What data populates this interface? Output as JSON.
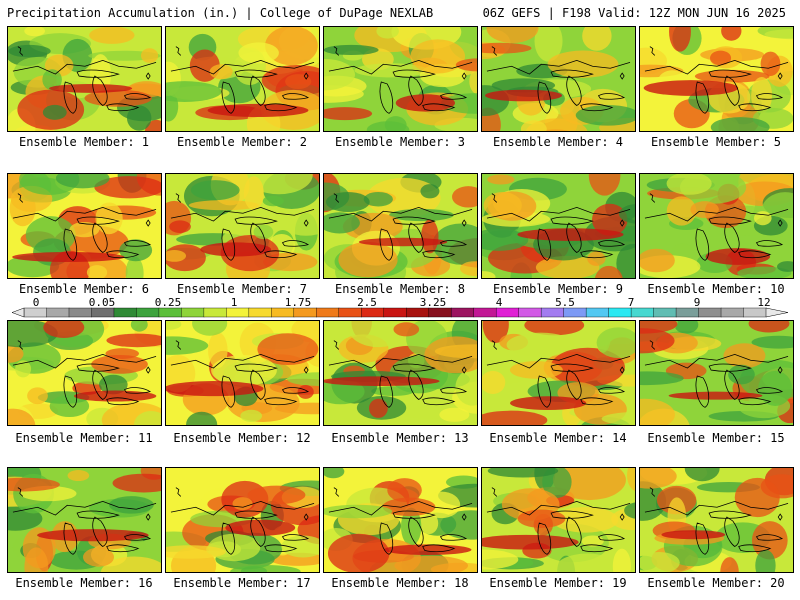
{
  "header": {
    "title_left": "Precipitation Accumulation (in.) | College of DuPage NEXLAB",
    "title_right": "06Z GEFS | F198 Valid: 12Z MON JUN 16 2025"
  },
  "colorbar": {
    "labels": [
      "0",
      "0.05",
      "0.25",
      "1",
      "1.75",
      "2.5",
      "3.25",
      "4",
      "5.5",
      "7",
      "9",
      "12"
    ],
    "colors": [
      "#cfcfcf",
      "#a8a8a8",
      "#8a8a8a",
      "#6f6f6f",
      "#2f8a35",
      "#3da33d",
      "#5cbf3a",
      "#8fd43a",
      "#c8e83a",
      "#f3f33a",
      "#f7da2e",
      "#f7bb22",
      "#f49a1f",
      "#ef7a1a",
      "#e85216",
      "#dc2a14",
      "#c91512",
      "#a8120f",
      "#87101e",
      "#9c1560",
      "#c21895",
      "#e01fd5",
      "#d25ae6",
      "#a37cf0",
      "#7d9af5",
      "#53c8f2",
      "#2ce8f2",
      "#47d8d0",
      "#60bdb3",
      "#7a9e9a",
      "#8f8f8f",
      "#a8a8a8",
      "#c8c8c8"
    ]
  },
  "panels": [
    {
      "label": "Ensemble Member: 1"
    },
    {
      "label": "Ensemble Member: 2"
    },
    {
      "label": "Ensemble Member: 3"
    },
    {
      "label": "Ensemble Member: 4"
    },
    {
      "label": "Ensemble Member: 5"
    },
    {
      "label": "Ensemble Member: 6"
    },
    {
      "label": "Ensemble Member: 7"
    },
    {
      "label": "Ensemble Member: 8"
    },
    {
      "label": "Ensemble Member: 9"
    },
    {
      "label": "Ensemble Member: 10"
    },
    {
      "label": "Ensemble Member: 11"
    },
    {
      "label": "Ensemble Member: 12"
    },
    {
      "label": "Ensemble Member: 13"
    },
    {
      "label": "Ensemble Member: 14"
    },
    {
      "label": "Ensemble Member: 15"
    },
    {
      "label": "Ensemble Member: 16"
    },
    {
      "label": "Ensemble Member: 17"
    },
    {
      "label": "Ensemble Member: 18"
    },
    {
      "label": "Ensemble Member: 19"
    },
    {
      "label": "Ensemble Member: 20"
    }
  ]
}
